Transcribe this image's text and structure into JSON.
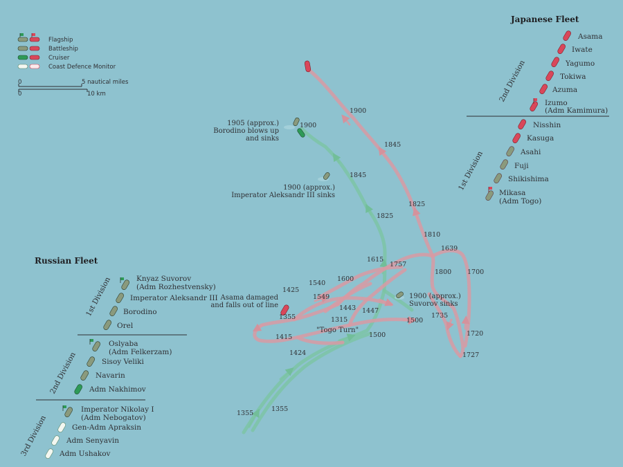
{
  "colors": {
    "sea": "#8ec2cf",
    "japanese_ship": "#d9475a",
    "japanese_track": "#d89aa3",
    "russian_battleship": "#8a9a7d",
    "russian_cruiser": "#2e9a57",
    "russian_track": "#7cc4a2",
    "coast_defence": "#f3f7f1",
    "text": "#2f2f33",
    "divider": "#2f2f33"
  },
  "legend": {
    "items": [
      {
        "label": "Flagship",
        "icon": "flagship-icon"
      },
      {
        "label": "Battleship",
        "icon": "battleship-icon"
      },
      {
        "label": "Cruiser",
        "icon": "cruiser-icon"
      },
      {
        "label": "Coast Defence Monitor",
        "icon": "coast-defence-monitor-icon"
      }
    ],
    "scale": {
      "nautical_label": "5 nautical miles",
      "km_label": "10 km",
      "zero_top": "0",
      "zero_bottom": "0"
    }
  },
  "japanese_fleet": {
    "title": "Japanese Fleet",
    "divisions": [
      {
        "name": "2nd Division",
        "ships": [
          "Asama",
          "Iwate",
          "Yagumo",
          "Tokiwa",
          "Azuma",
          "Izumo",
          "(Adm  Kamimura)"
        ]
      },
      {
        "name": "1st Division",
        "ships": [
          "Nisshin",
          "Kasuga",
          "Asahi",
          "Fuji",
          "Shikishima",
          "Mikasa",
          "(Adm Togo)"
        ]
      }
    ]
  },
  "russian_fleet": {
    "title": "Russian Fleet",
    "divisions": [
      {
        "name": "1st Division",
        "ships": [
          "Knyaz Suvorov",
          "(Adm Rozhestvensky)",
          "Imperator Aleksandr III",
          "Borodino",
          "Orel"
        ]
      },
      {
        "name": "2nd Division",
        "ships": [
          "Oslyaba",
          "(Adm Felkerzam)",
          "Sisoy Veliki",
          "Navarin",
          "Adm Nakhimov"
        ]
      },
      {
        "name": "3rd Division",
        "ships": [
          "Imperator Nikolay I",
          "(Adm Nebogatov)",
          "Gen-Adm Apraksin",
          "Adm Senyavin",
          "Adm Ushakov"
        ]
      }
    ]
  },
  "events": {
    "borodino": [
      "1905 (approx.)",
      "Borodino blows up",
      "and sinks"
    ],
    "aleksandr": [
      "1900 (approx.)",
      "Imperator Aleksandr III sinks"
    ],
    "asama": [
      "Asama damaged",
      "and falls out of line"
    ],
    "suvorov": [
      "1900 (approx.)",
      "Suvorov sinks"
    ],
    "togo_turn": "\"Togo Turn\""
  },
  "times_japanese": [
    "1900",
    "1845",
    "1825",
    "1810",
    "1639",
    "1700",
    "1800",
    "1735",
    "1720",
    "1727",
    "1500",
    "1447",
    "1443",
    "1425",
    "1540",
    "1549",
    "1600",
    "1355",
    "1415",
    "1315"
  ],
  "times_russian": [
    "1900",
    "1845",
    "1825",
    "1615",
    "1757",
    "1500",
    "1424",
    "1355",
    "1355"
  ]
}
